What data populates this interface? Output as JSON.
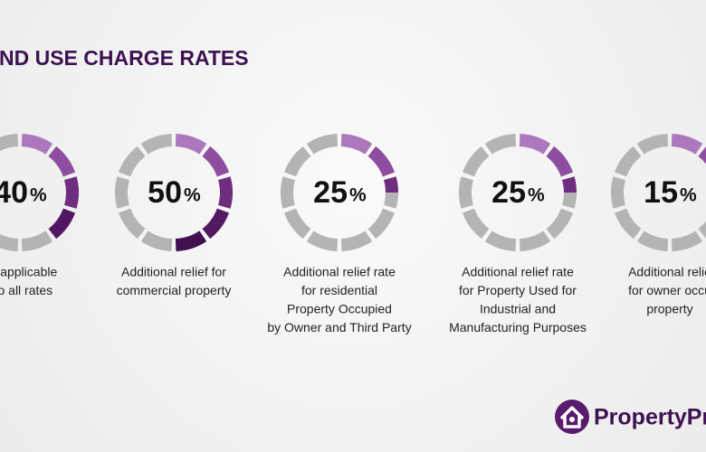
{
  "chart_data": {
    "type": "segmented-donut",
    "title": "ND USE CHARGE RATES",
    "values": [
      40,
      50,
      25,
      25,
      15
    ],
    "unit": "%",
    "categories": [
      [
        "ral applicable",
        "f to all rates"
      ],
      [
        "Additional relief for",
        "commercial property"
      ],
      [
        "Additional relief rate",
        "for residential",
        "Property Occupied",
        "by Owner and Third Party"
      ],
      [
        "Additional relief rate",
        "for Property Used for",
        "Industrial and",
        "Manufacturing Purposes"
      ],
      [
        "Additional relie",
        "for owner occu",
        "property"
      ]
    ],
    "colors": [
      "#ad77bd",
      "#8f4d9f",
      "#6e2d7e",
      "#541862",
      "#420f50"
    ],
    "track_color": "#b4b4b4",
    "logo": "PropertyPro"
  }
}
